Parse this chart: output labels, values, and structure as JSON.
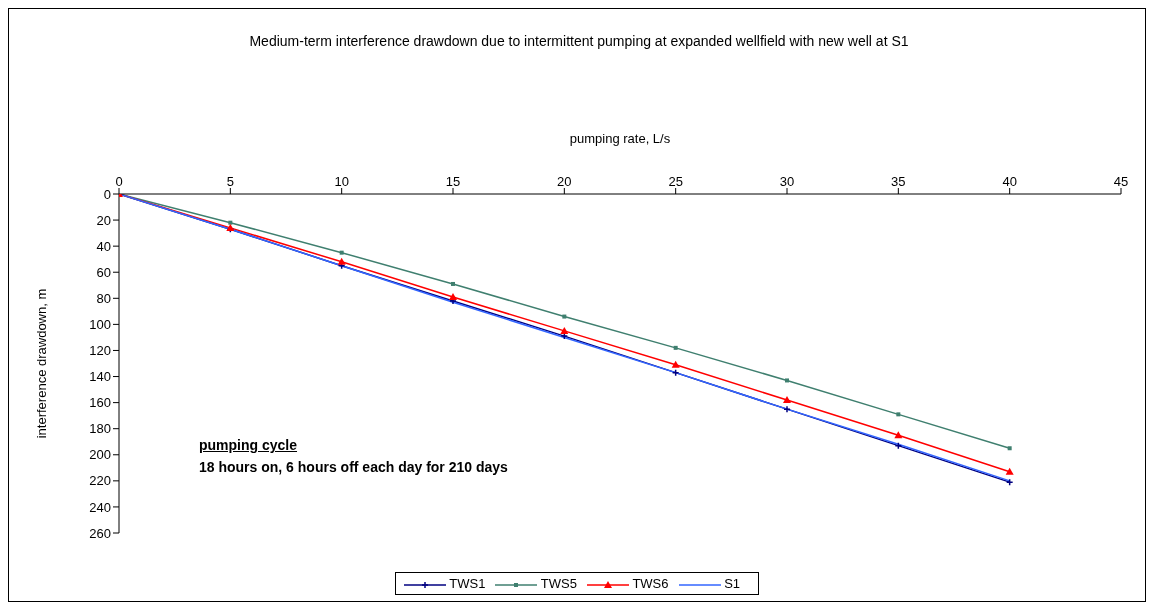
{
  "chart_data": {
    "type": "line",
    "title": "Medium-term interference drawdown due to intermittent pumping at expanded wellfield with new well at S1",
    "xlabel": "pumping rate, L/s",
    "ylabel": "interference drawdown, m",
    "x": [
      0,
      5,
      10,
      15,
      20,
      25,
      30,
      35,
      40
    ],
    "series": [
      {
        "name": "TWS1",
        "color": "#000080",
        "marker": "cross",
        "values": [
          0,
          27,
          55,
          82,
          109,
          137,
          165,
          193,
          221
        ]
      },
      {
        "name": "TWS5",
        "color": "#3f7f6f",
        "marker": "square",
        "values": [
          0,
          22,
          45,
          69,
          94,
          118,
          143,
          169,
          195
        ]
      },
      {
        "name": "TWS6",
        "color": "#ff0000",
        "marker": "triangle",
        "values": [
          0,
          26,
          52,
          79,
          105,
          131,
          158,
          185,
          213
        ]
      },
      {
        "name": "S1",
        "color": "#3366ff",
        "marker": "none",
        "values": [
          0,
          27,
          55,
          83,
          110,
          137,
          165,
          192,
          220
        ]
      }
    ],
    "xlim": [
      0,
      45
    ],
    "xticks": [
      0,
      5,
      10,
      15,
      20,
      25,
      30,
      35,
      40,
      45
    ],
    "ylim": [
      260,
      0
    ],
    "yticks": [
      0,
      20,
      40,
      60,
      80,
      100,
      120,
      140,
      160,
      180,
      200,
      220,
      240,
      260
    ],
    "grid": false,
    "legend": "bottom",
    "line_style": "solid",
    "annotations": [
      "pumping cycle",
      "18 hours on, 6 hours off each day for 210 days"
    ]
  }
}
